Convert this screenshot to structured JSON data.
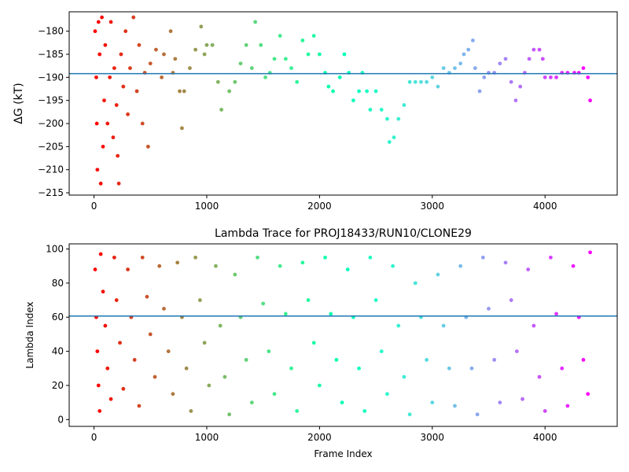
{
  "chart_data": [
    {
      "type": "scatter",
      "title": "",
      "xlabel": "",
      "ylabel": "ΔG (kT)",
      "xlim": [
        -220,
        4640
      ],
      "ylim": [
        -215.5,
        -175.8
      ],
      "xticks": [
        0,
        1000,
        2000,
        3000,
        4000
      ],
      "yticks": [
        -215,
        -210,
        -205,
        -200,
        -195,
        -190,
        -185,
        -180
      ],
      "hline": -189.2,
      "hline_color": "#1f77b4",
      "colormap": "rainbow",
      "frames_total": 4400,
      "grid": false,
      "legend": "none",
      "series_points": [
        [
          10,
          -180
        ],
        [
          20,
          -190
        ],
        [
          25,
          -200
        ],
        [
          30,
          -210
        ],
        [
          40,
          -178
        ],
        [
          50,
          -185
        ],
        [
          60,
          -213
        ],
        [
          70,
          -177
        ],
        [
          80,
          -205
        ],
        [
          90,
          -195
        ],
        [
          100,
          -183
        ],
        [
          120,
          -200
        ],
        [
          140,
          -190
        ],
        [
          150,
          -178
        ],
        [
          170,
          -203
        ],
        [
          180,
          -188
        ],
        [
          200,
          -196
        ],
        [
          210,
          -207
        ],
        [
          220,
          -213
        ],
        [
          240,
          -185
        ],
        [
          260,
          -192
        ],
        [
          280,
          -180
        ],
        [
          300,
          -198
        ],
        [
          320,
          -188
        ],
        [
          350,
          -177
        ],
        [
          380,
          -193
        ],
        [
          400,
          -183
        ],
        [
          430,
          -200
        ],
        [
          450,
          -189
        ],
        [
          480,
          -205
        ],
        [
          500,
          -187
        ],
        [
          550,
          -184
        ],
        [
          600,
          -190
        ],
        [
          620,
          -185
        ],
        [
          680,
          -180
        ],
        [
          700,
          -189
        ],
        [
          720,
          -186
        ],
        [
          760,
          -193
        ],
        [
          780,
          -201
        ],
        [
          800,
          -193
        ],
        [
          850,
          -188
        ],
        [
          900,
          -184
        ],
        [
          950,
          -179
        ],
        [
          980,
          -185
        ],
        [
          1000,
          -183
        ],
        [
          1050,
          -183
        ],
        [
          1100,
          -191
        ],
        [
          1130,
          -197
        ],
        [
          1200,
          -193
        ],
        [
          1250,
          -191
        ],
        [
          1300,
          -187
        ],
        [
          1350,
          -183
        ],
        [
          1400,
          -188
        ],
        [
          1430,
          -178
        ],
        [
          1480,
          -183
        ],
        [
          1520,
          -190
        ],
        [
          1560,
          -189
        ],
        [
          1600,
          -186
        ],
        [
          1650,
          -181
        ],
        [
          1700,
          -186
        ],
        [
          1750,
          -188
        ],
        [
          1800,
          -191
        ],
        [
          1850,
          -182
        ],
        [
          1900,
          -185
        ],
        [
          1950,
          -181
        ],
        [
          2000,
          -185
        ],
        [
          2050,
          -189
        ],
        [
          2080,
          -192
        ],
        [
          2120,
          -193
        ],
        [
          2180,
          -190
        ],
        [
          2220,
          -185
        ],
        [
          2260,
          -189
        ],
        [
          2300,
          -195
        ],
        [
          2350,
          -193
        ],
        [
          2380,
          -189
        ],
        [
          2420,
          -193
        ],
        [
          2450,
          -197
        ],
        [
          2500,
          -193
        ],
        [
          2550,
          -197
        ],
        [
          2600,
          -199
        ],
        [
          2620,
          -204
        ],
        [
          2660,
          -203
        ],
        [
          2700,
          -199
        ],
        [
          2750,
          -196
        ],
        [
          2800,
          -191
        ],
        [
          2850,
          -191
        ],
        [
          2900,
          -191
        ],
        [
          2950,
          -191
        ],
        [
          3000,
          -190
        ],
        [
          3050,
          -192
        ],
        [
          3100,
          -188
        ],
        [
          3150,
          -189
        ],
        [
          3200,
          -188
        ],
        [
          3250,
          -187
        ],
        [
          3280,
          -185
        ],
        [
          3320,
          -184
        ],
        [
          3360,
          -182
        ],
        [
          3380,
          -188
        ],
        [
          3420,
          -193
        ],
        [
          3460,
          -190
        ],
        [
          3500,
          -189
        ],
        [
          3550,
          -189
        ],
        [
          3600,
          -187
        ],
        [
          3650,
          -186
        ],
        [
          3700,
          -191
        ],
        [
          3740,
          -195
        ],
        [
          3780,
          -192
        ],
        [
          3820,
          -189
        ],
        [
          3860,
          -186
        ],
        [
          3900,
          -184
        ],
        [
          3950,
          -184
        ],
        [
          3980,
          -186
        ],
        [
          4000,
          -190
        ],
        [
          4050,
          -190
        ],
        [
          4100,
          -190
        ],
        [
          4150,
          -189
        ],
        [
          4200,
          -189
        ],
        [
          4260,
          -189
        ],
        [
          4300,
          -189
        ],
        [
          4340,
          -188
        ],
        [
          4380,
          -190
        ],
        [
          4400,
          -195
        ]
      ]
    },
    {
      "type": "scatter",
      "title": "Lambda Trace for PROJ18433/RUN10/CLONE29",
      "xlabel": "Frame Index",
      "ylabel": "Lambda Index",
      "xlim": [
        -220,
        4640
      ],
      "ylim": [
        -4,
        103
      ],
      "xticks": [
        0,
        1000,
        2000,
        3000,
        4000
      ],
      "yticks": [
        0,
        20,
        40,
        60,
        80,
        100
      ],
      "hline": 60.7,
      "hline_color": "#1f77b4",
      "colormap": "rainbow",
      "frames_total": 4400,
      "grid": false,
      "legend": "none",
      "series_points": [
        [
          10,
          88
        ],
        [
          20,
          60
        ],
        [
          30,
          40
        ],
        [
          40,
          20
        ],
        [
          50,
          5
        ],
        [
          60,
          97
        ],
        [
          80,
          75
        ],
        [
          100,
          55
        ],
        [
          120,
          30
        ],
        [
          150,
          12
        ],
        [
          180,
          95
        ],
        [
          200,
          70
        ],
        [
          230,
          45
        ],
        [
          260,
          18
        ],
        [
          300,
          88
        ],
        [
          330,
          60
        ],
        [
          360,
          35
        ],
        [
          400,
          8
        ],
        [
          430,
          95
        ],
        [
          470,
          72
        ],
        [
          500,
          50
        ],
        [
          540,
          25
        ],
        [
          580,
          90
        ],
        [
          620,
          65
        ],
        [
          660,
          40
        ],
        [
          700,
          15
        ],
        [
          740,
          92
        ],
        [
          780,
          60
        ],
        [
          820,
          30
        ],
        [
          860,
          5
        ],
        [
          900,
          95
        ],
        [
          940,
          70
        ],
        [
          980,
          45
        ],
        [
          1020,
          20
        ],
        [
          1080,
          90
        ],
        [
          1120,
          55
        ],
        [
          1160,
          25
        ],
        [
          1200,
          3
        ],
        [
          1250,
          85
        ],
        [
          1300,
          60
        ],
        [
          1350,
          35
        ],
        [
          1400,
          10
        ],
        [
          1450,
          95
        ],
        [
          1500,
          68
        ],
        [
          1550,
          40
        ],
        [
          1600,
          15
        ],
        [
          1650,
          90
        ],
        [
          1700,
          62
        ],
        [
          1750,
          30
        ],
        [
          1800,
          5
        ],
        [
          1850,
          92
        ],
        [
          1900,
          70
        ],
        [
          1950,
          45
        ],
        [
          2000,
          20
        ],
        [
          2050,
          95
        ],
        [
          2100,
          62
        ],
        [
          2150,
          35
        ],
        [
          2200,
          10
        ],
        [
          2250,
          88
        ],
        [
          2300,
          60
        ],
        [
          2350,
          30
        ],
        [
          2400,
          5
        ],
        [
          2450,
          95
        ],
        [
          2500,
          70
        ],
        [
          2550,
          40
        ],
        [
          2600,
          15
        ],
        [
          2650,
          90
        ],
        [
          2700,
          55
        ],
        [
          2750,
          25
        ],
        [
          2800,
          3
        ],
        [
          2850,
          80
        ],
        [
          2900,
          60
        ],
        [
          2950,
          35
        ],
        [
          3000,
          10
        ],
        [
          3050,
          85
        ],
        [
          3100,
          55
        ],
        [
          3150,
          30
        ],
        [
          3200,
          8
        ],
        [
          3250,
          90
        ],
        [
          3300,
          60
        ],
        [
          3350,
          30
        ],
        [
          3400,
          3
        ],
        [
          3450,
          95
        ],
        [
          3500,
          65
        ],
        [
          3550,
          35
        ],
        [
          3600,
          10
        ],
        [
          3650,
          92
        ],
        [
          3700,
          70
        ],
        [
          3750,
          40
        ],
        [
          3800,
          12
        ],
        [
          3850,
          88
        ],
        [
          3900,
          55
        ],
        [
          3950,
          25
        ],
        [
          4000,
          5
        ],
        [
          4050,
          95
        ],
        [
          4100,
          62
        ],
        [
          4150,
          30
        ],
        [
          4200,
          8
        ],
        [
          4250,
          90
        ],
        [
          4300,
          60
        ],
        [
          4340,
          35
        ],
        [
          4380,
          15
        ],
        [
          4400,
          98
        ]
      ]
    }
  ]
}
